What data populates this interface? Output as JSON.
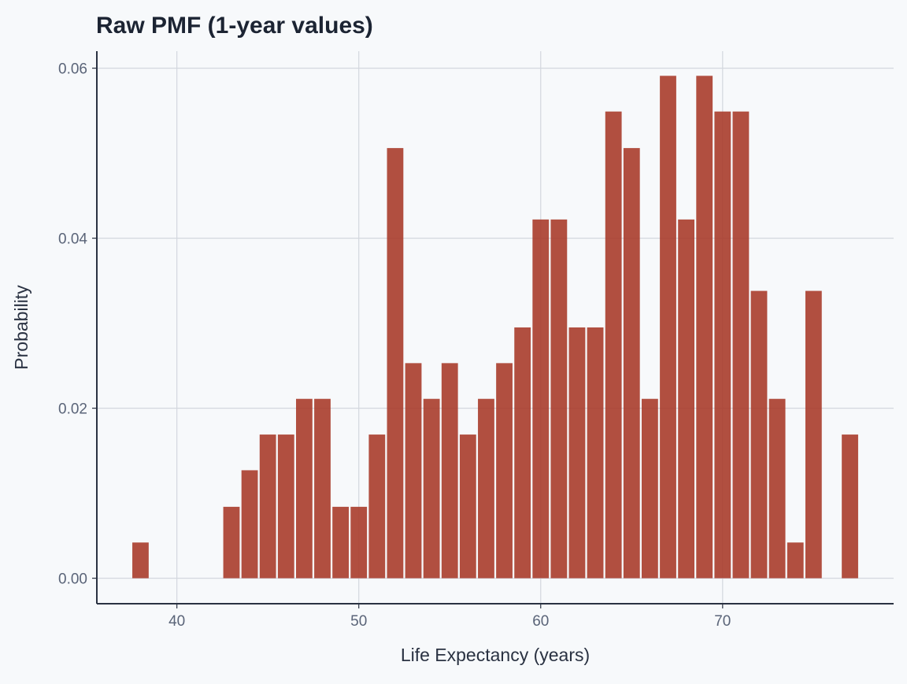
{
  "chart_data": {
    "type": "bar",
    "title": "Raw PMF (1-year values)",
    "xlabel": "Life Expectancy (years)",
    "ylabel": "Probability",
    "xlim": [
      35.6,
      79.4
    ],
    "ylim": [
      -0.003,
      0.062
    ],
    "xticks": [
      40,
      50,
      60,
      70
    ],
    "xtick_labels": [
      "40",
      "50",
      "60",
      "70"
    ],
    "yticks": [
      0,
      0.02,
      0.04,
      0.06
    ],
    "ytick_labels": [
      "0.00",
      "0.02",
      "0.04",
      "0.06"
    ],
    "grid": true,
    "bar_color": "#a83c2b",
    "x": [
      38,
      43,
      44,
      45,
      46,
      47,
      48,
      49,
      50,
      51,
      52,
      53,
      54,
      55,
      56,
      57,
      58,
      59,
      60,
      61,
      62,
      63,
      64,
      65,
      66,
      67,
      68,
      69,
      70,
      71,
      72,
      73,
      74,
      75,
      77
    ],
    "values": [
      0.0042,
      0.0084,
      0.0127,
      0.0169,
      0.0169,
      0.0211,
      0.0211,
      0.0084,
      0.0084,
      0.0169,
      0.0506,
      0.0253,
      0.0211,
      0.0253,
      0.0169,
      0.0211,
      0.0253,
      0.0295,
      0.0422,
      0.0422,
      0.0295,
      0.0295,
      0.0549,
      0.0506,
      0.0211,
      0.0591,
      0.0422,
      0.0591,
      0.0549,
      0.0549,
      0.0338,
      0.0211,
      0.0042,
      0.0338,
      0.0169
    ]
  }
}
